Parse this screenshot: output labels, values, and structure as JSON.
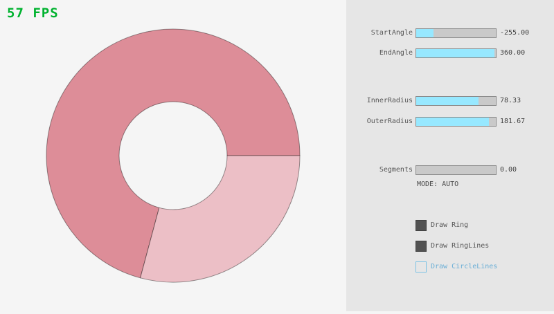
{
  "fps_label": "57 FPS",
  "fps_color": "#00b22f",
  "ring": {
    "color_overlap": "#dd8d98",
    "color_base": "#ecbfc6",
    "outline_color": "rgba(0,0,0,0.4)"
  },
  "panel": {
    "accent_color": "#97e8ff",
    "sliders": [
      {
        "label": "StartAngle",
        "value": "-255.00",
        "fill_pct": 22
      },
      {
        "label": "EndAngle",
        "value": "360.00",
        "fill_pct": 98
      },
      {
        "label": "InnerRadius",
        "value": "78.33",
        "fill_pct": 78
      },
      {
        "label": "OuterRadius",
        "value": "181.67",
        "fill_pct": 91
      },
      {
        "label": "Segments",
        "value": "0.00",
        "fill_pct": 0
      }
    ],
    "mode_text": "MODE: AUTO",
    "checkboxes": [
      {
        "label": "Draw Ring",
        "checked": true
      },
      {
        "label": "Draw RingLines",
        "checked": true
      },
      {
        "label": "Draw CircleLines",
        "checked": false
      }
    ]
  }
}
